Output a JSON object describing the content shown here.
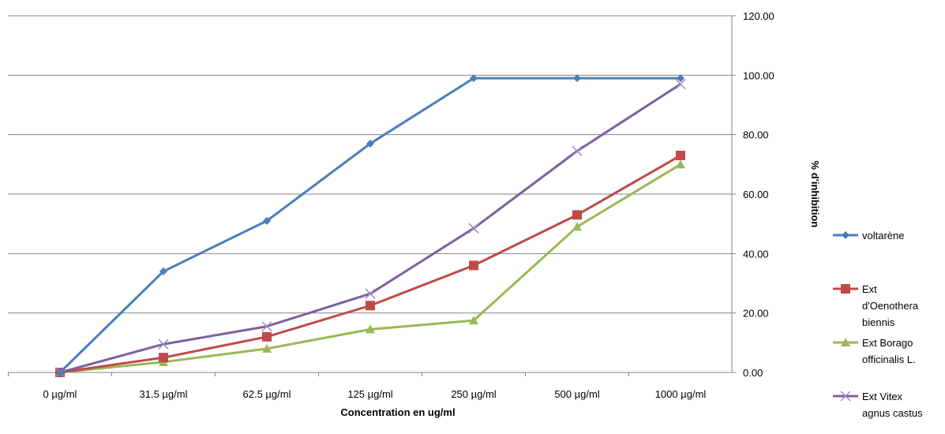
{
  "chart_data": {
    "type": "line",
    "categories": [
      "0  µg/ml",
      "31.5 µg/ml",
      "62.5 µg/ml",
      "125 µg/ml",
      "250 µg/ml",
      "500 µg/ml",
      "1000 µg/ml"
    ],
    "series": [
      {
        "name": "voltarène",
        "values": [
          0,
          34,
          51,
          77,
          99,
          99,
          99
        ],
        "color": "#4a7ebb",
        "marker": "diamond"
      },
      {
        "name": "Ext d'Oenothera biennis",
        "values": [
          0,
          5,
          12,
          22.5,
          36,
          53,
          73
        ],
        "color": "#be4b48",
        "marker": "square"
      },
      {
        "name": "Ext Borago officinalis L.",
        "values": [
          0,
          3.5,
          8,
          14.5,
          17.5,
          49,
          70
        ],
        "color": "#98b954",
        "marker": "triangle"
      },
      {
        "name": "Ext Vitex agnus castus",
        "values": [
          0,
          9.5,
          15.5,
          26.5,
          48.5,
          74.5,
          97
        ],
        "color": "#7d60a0",
        "marker": "x"
      }
    ],
    "title": "",
    "xlabel": "Concentration en ug/ml",
    "ylabel": "% d'inhibition",
    "ylim": [
      0,
      120
    ],
    "yticks": [
      "0.00",
      "20.00",
      "40.00",
      "60.00",
      "80.00",
      "100.00",
      "120.00"
    ],
    "y_axis_side": "right",
    "grid": true,
    "legend_position": "right"
  }
}
